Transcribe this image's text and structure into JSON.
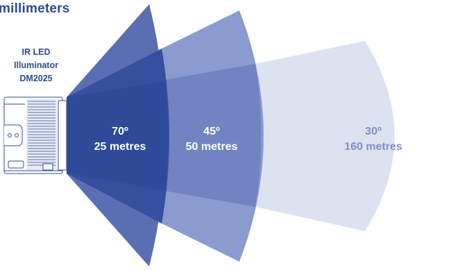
{
  "title": "millimeters",
  "device": {
    "line1": "IR LED",
    "line2": "Illuminator",
    "line3": "DM2025"
  },
  "beams": [
    {
      "angle": "70º",
      "distance": "25 metres",
      "color": "#2f4a99"
    },
    {
      "angle": "45º",
      "distance": "50 metres",
      "color": "#7a8dc6"
    },
    {
      "angle": "30º",
      "distance": "160 metres",
      "color": "#dde2f1"
    }
  ]
}
